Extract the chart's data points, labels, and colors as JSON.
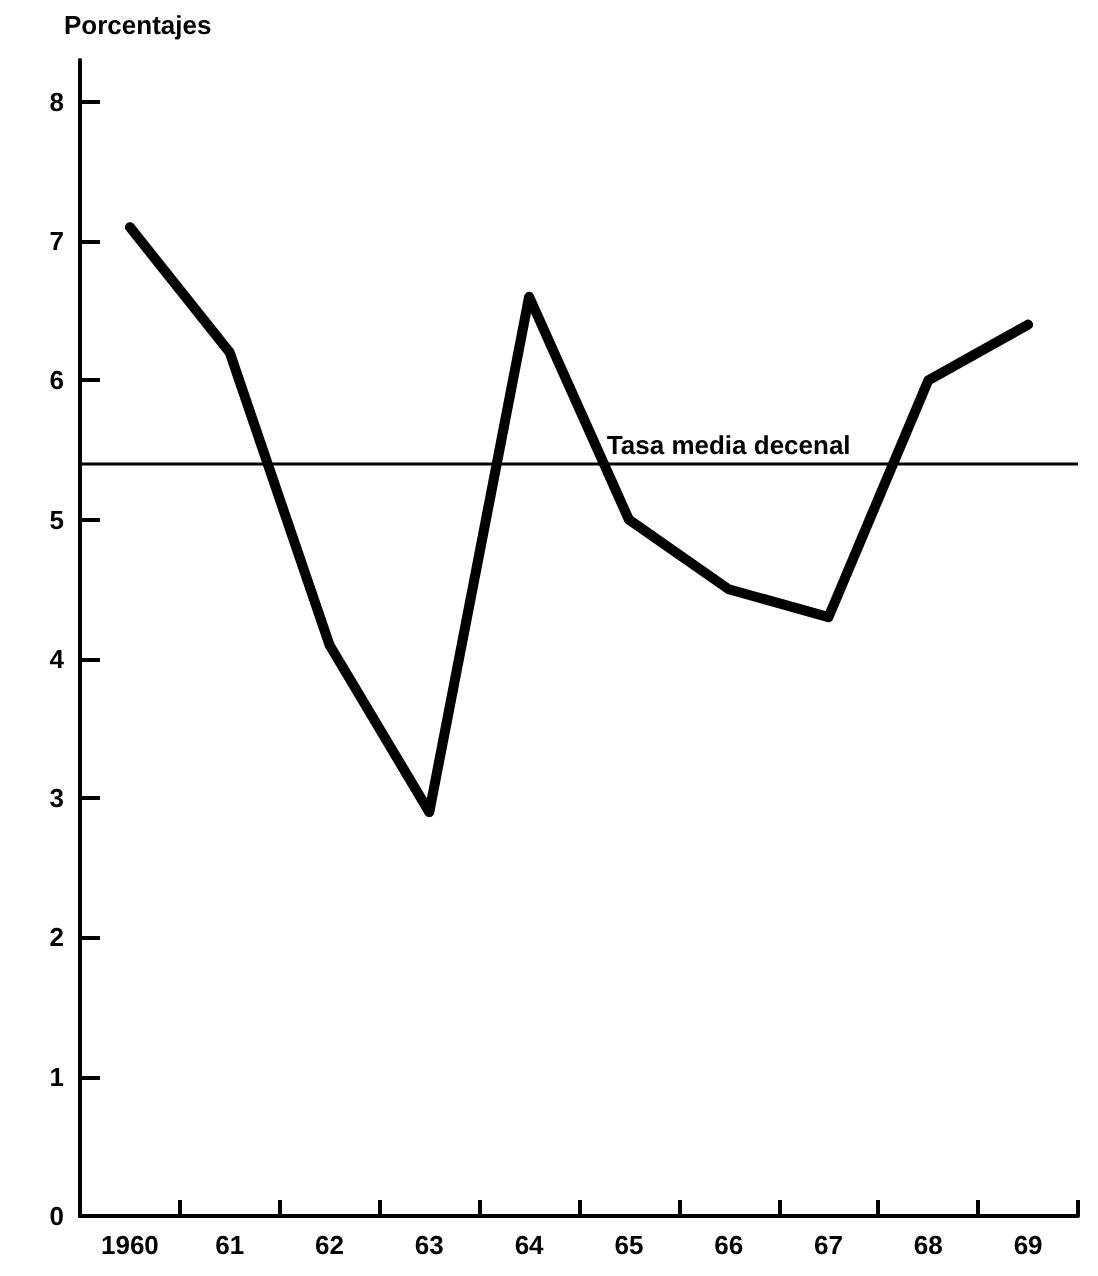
{
  "chart_data": {
    "type": "line",
    "ylabel": "Porcentajes",
    "categories": [
      "1960",
      "61",
      "62",
      "63",
      "64",
      "65",
      "66",
      "67",
      "68",
      "69"
    ],
    "values": [
      7.1,
      6.2,
      4.1,
      2.9,
      6.6,
      5.0,
      4.5,
      4.3,
      6.0,
      6.4
    ],
    "color": "#000000",
    "ylim": [
      0,
      8.3
    ],
    "yticks": [
      0,
      1,
      2,
      3,
      4,
      5,
      6,
      7,
      8
    ],
    "ref_lines": [
      {
        "axis": "y",
        "value": 5.4,
        "label": "Tasa media decenal",
        "color": "#000000",
        "line_style": "solid"
      }
    ],
    "grid": false,
    "marker": "none",
    "line_style": "solid"
  }
}
